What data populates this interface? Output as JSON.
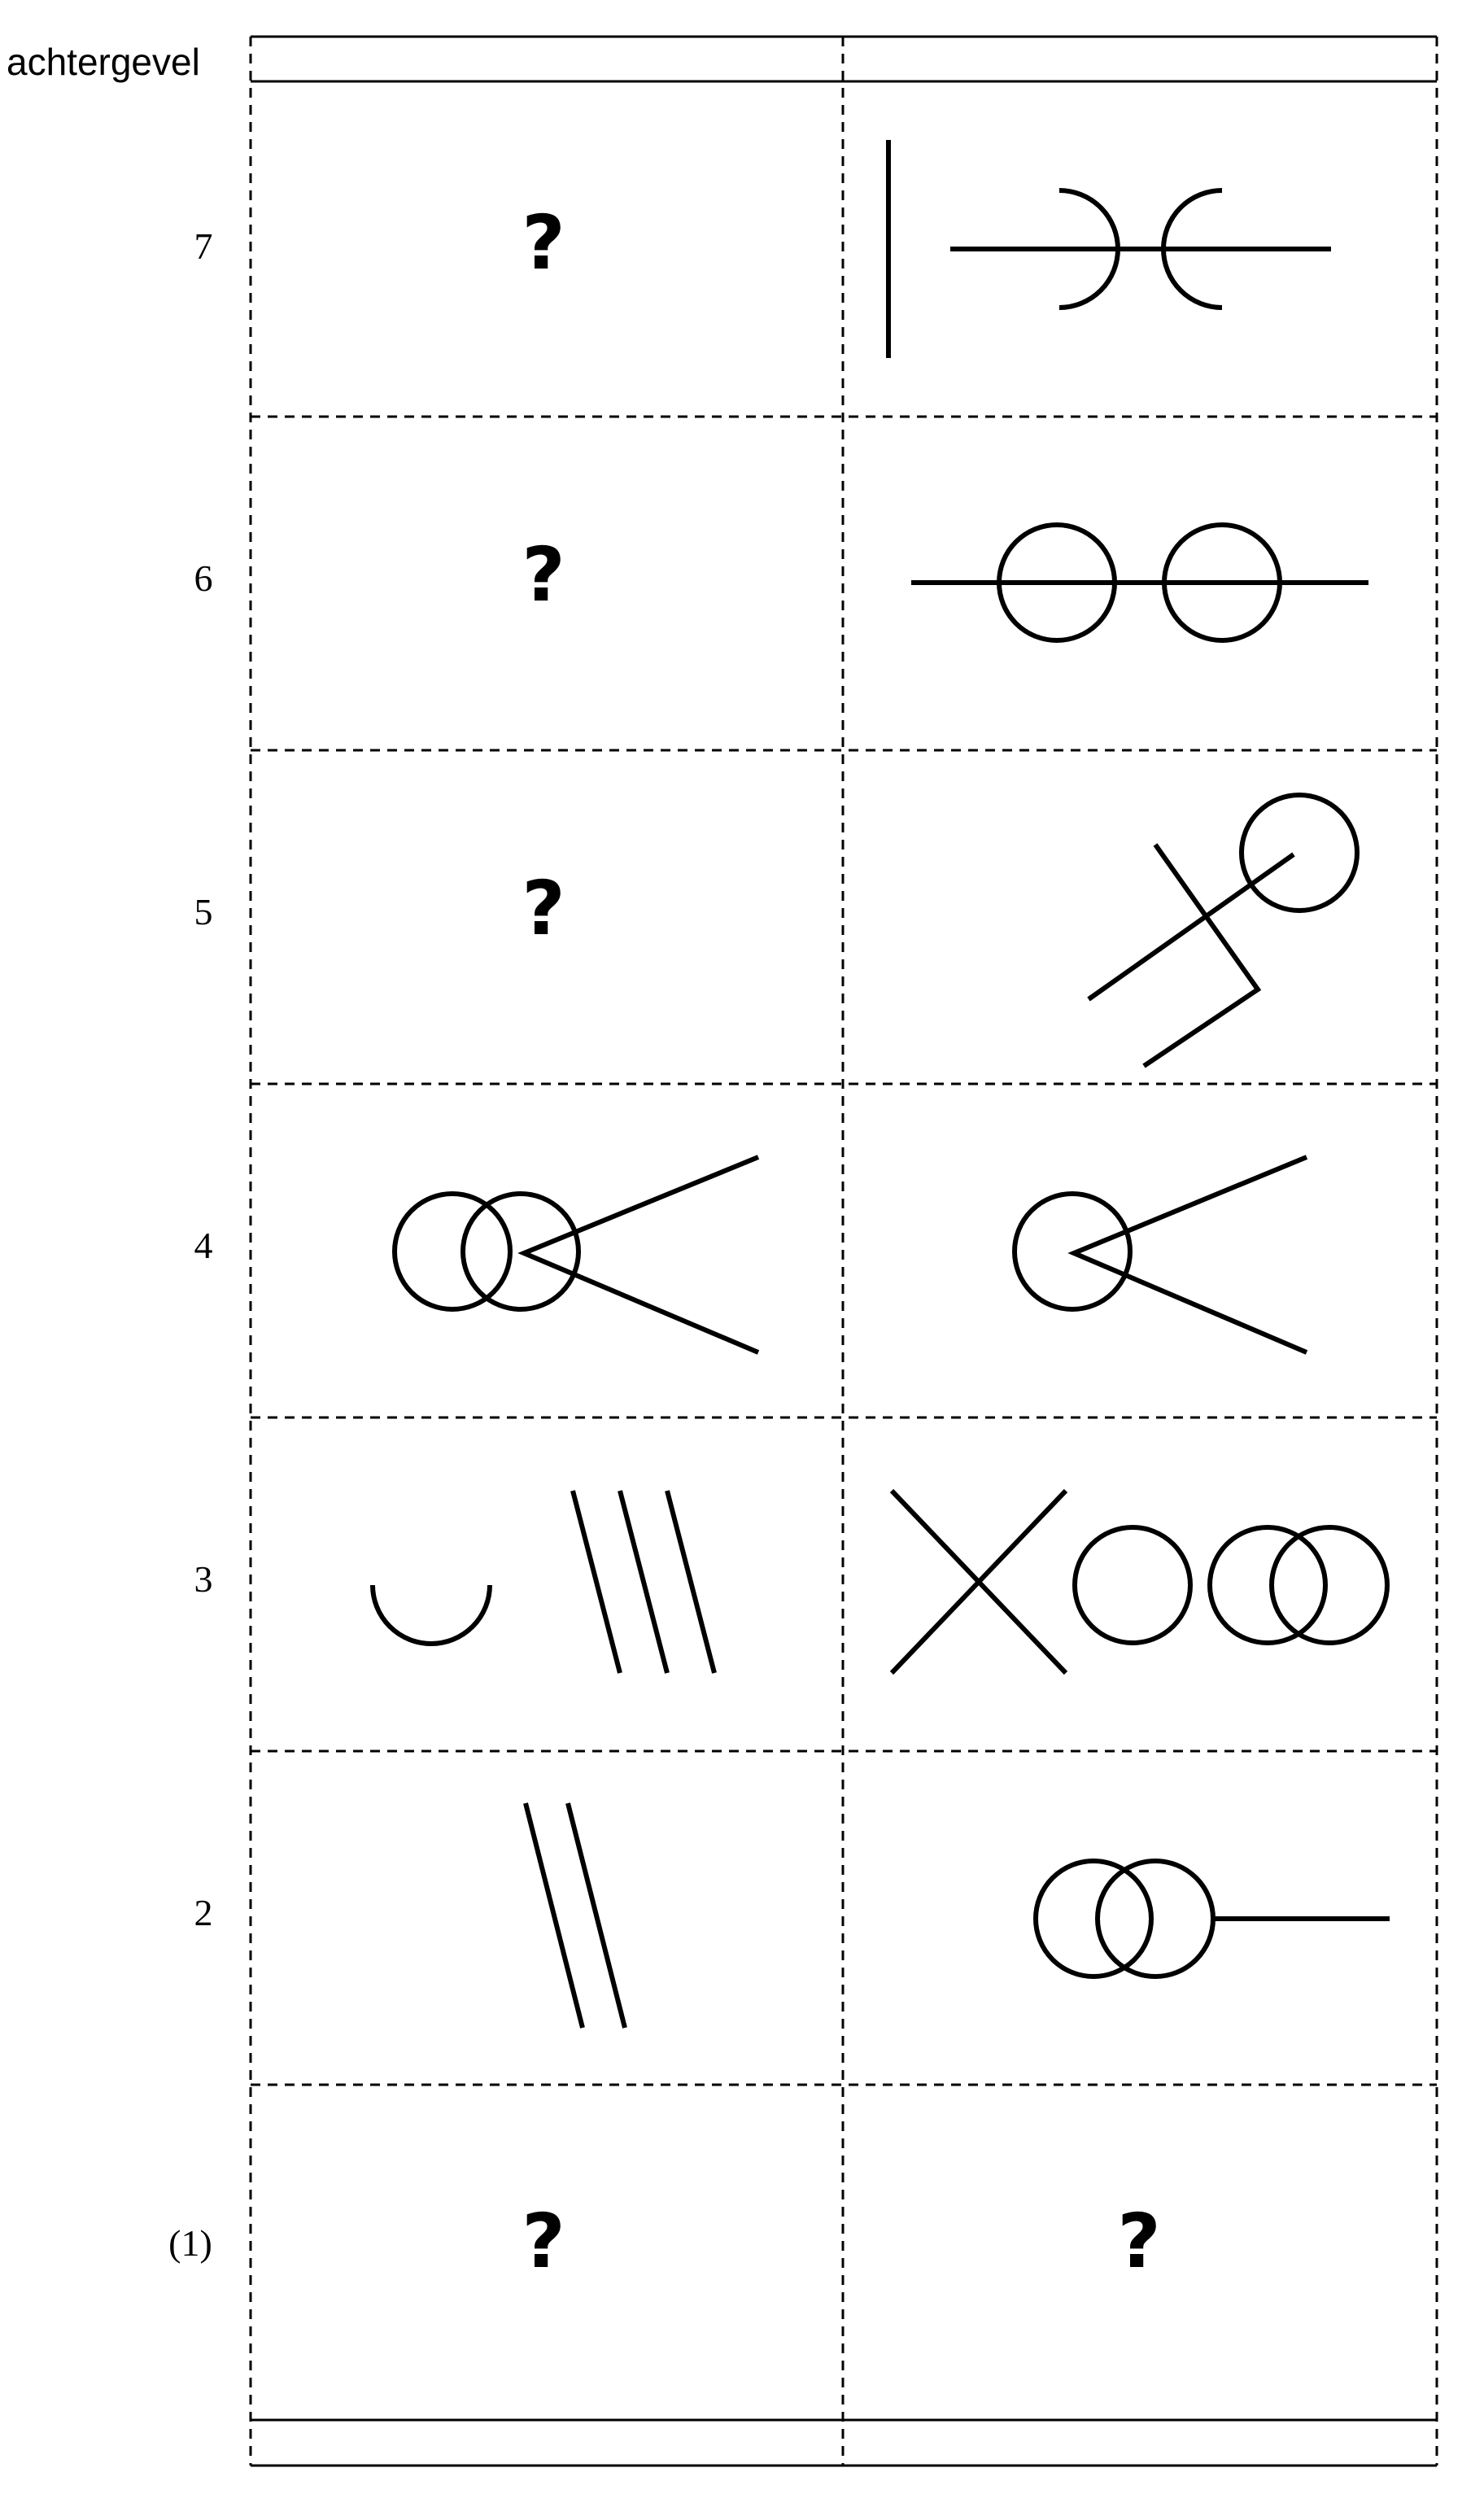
{
  "header_label": "achtergevel",
  "rows": [
    {
      "label": "7",
      "left": "?",
      "right": "arc-pairs-with-bar"
    },
    {
      "label": "6",
      "left": "?",
      "right": "two-circles-on-line"
    },
    {
      "label": "5",
      "left": "?",
      "right": "circle-with-bent-line"
    },
    {
      "label": "4",
      "left": "overlapping-circles-with-wedge",
      "right": "circle-with-wedge"
    },
    {
      "label": "3",
      "left": "arc-and-three-lines",
      "right": "cross-and-three-circles"
    },
    {
      "label": "2",
      "left": "two-lines",
      "right": "overlapping-circles-with-line"
    },
    {
      "label": "(1)",
      "left": "?",
      "right": "?"
    }
  ]
}
